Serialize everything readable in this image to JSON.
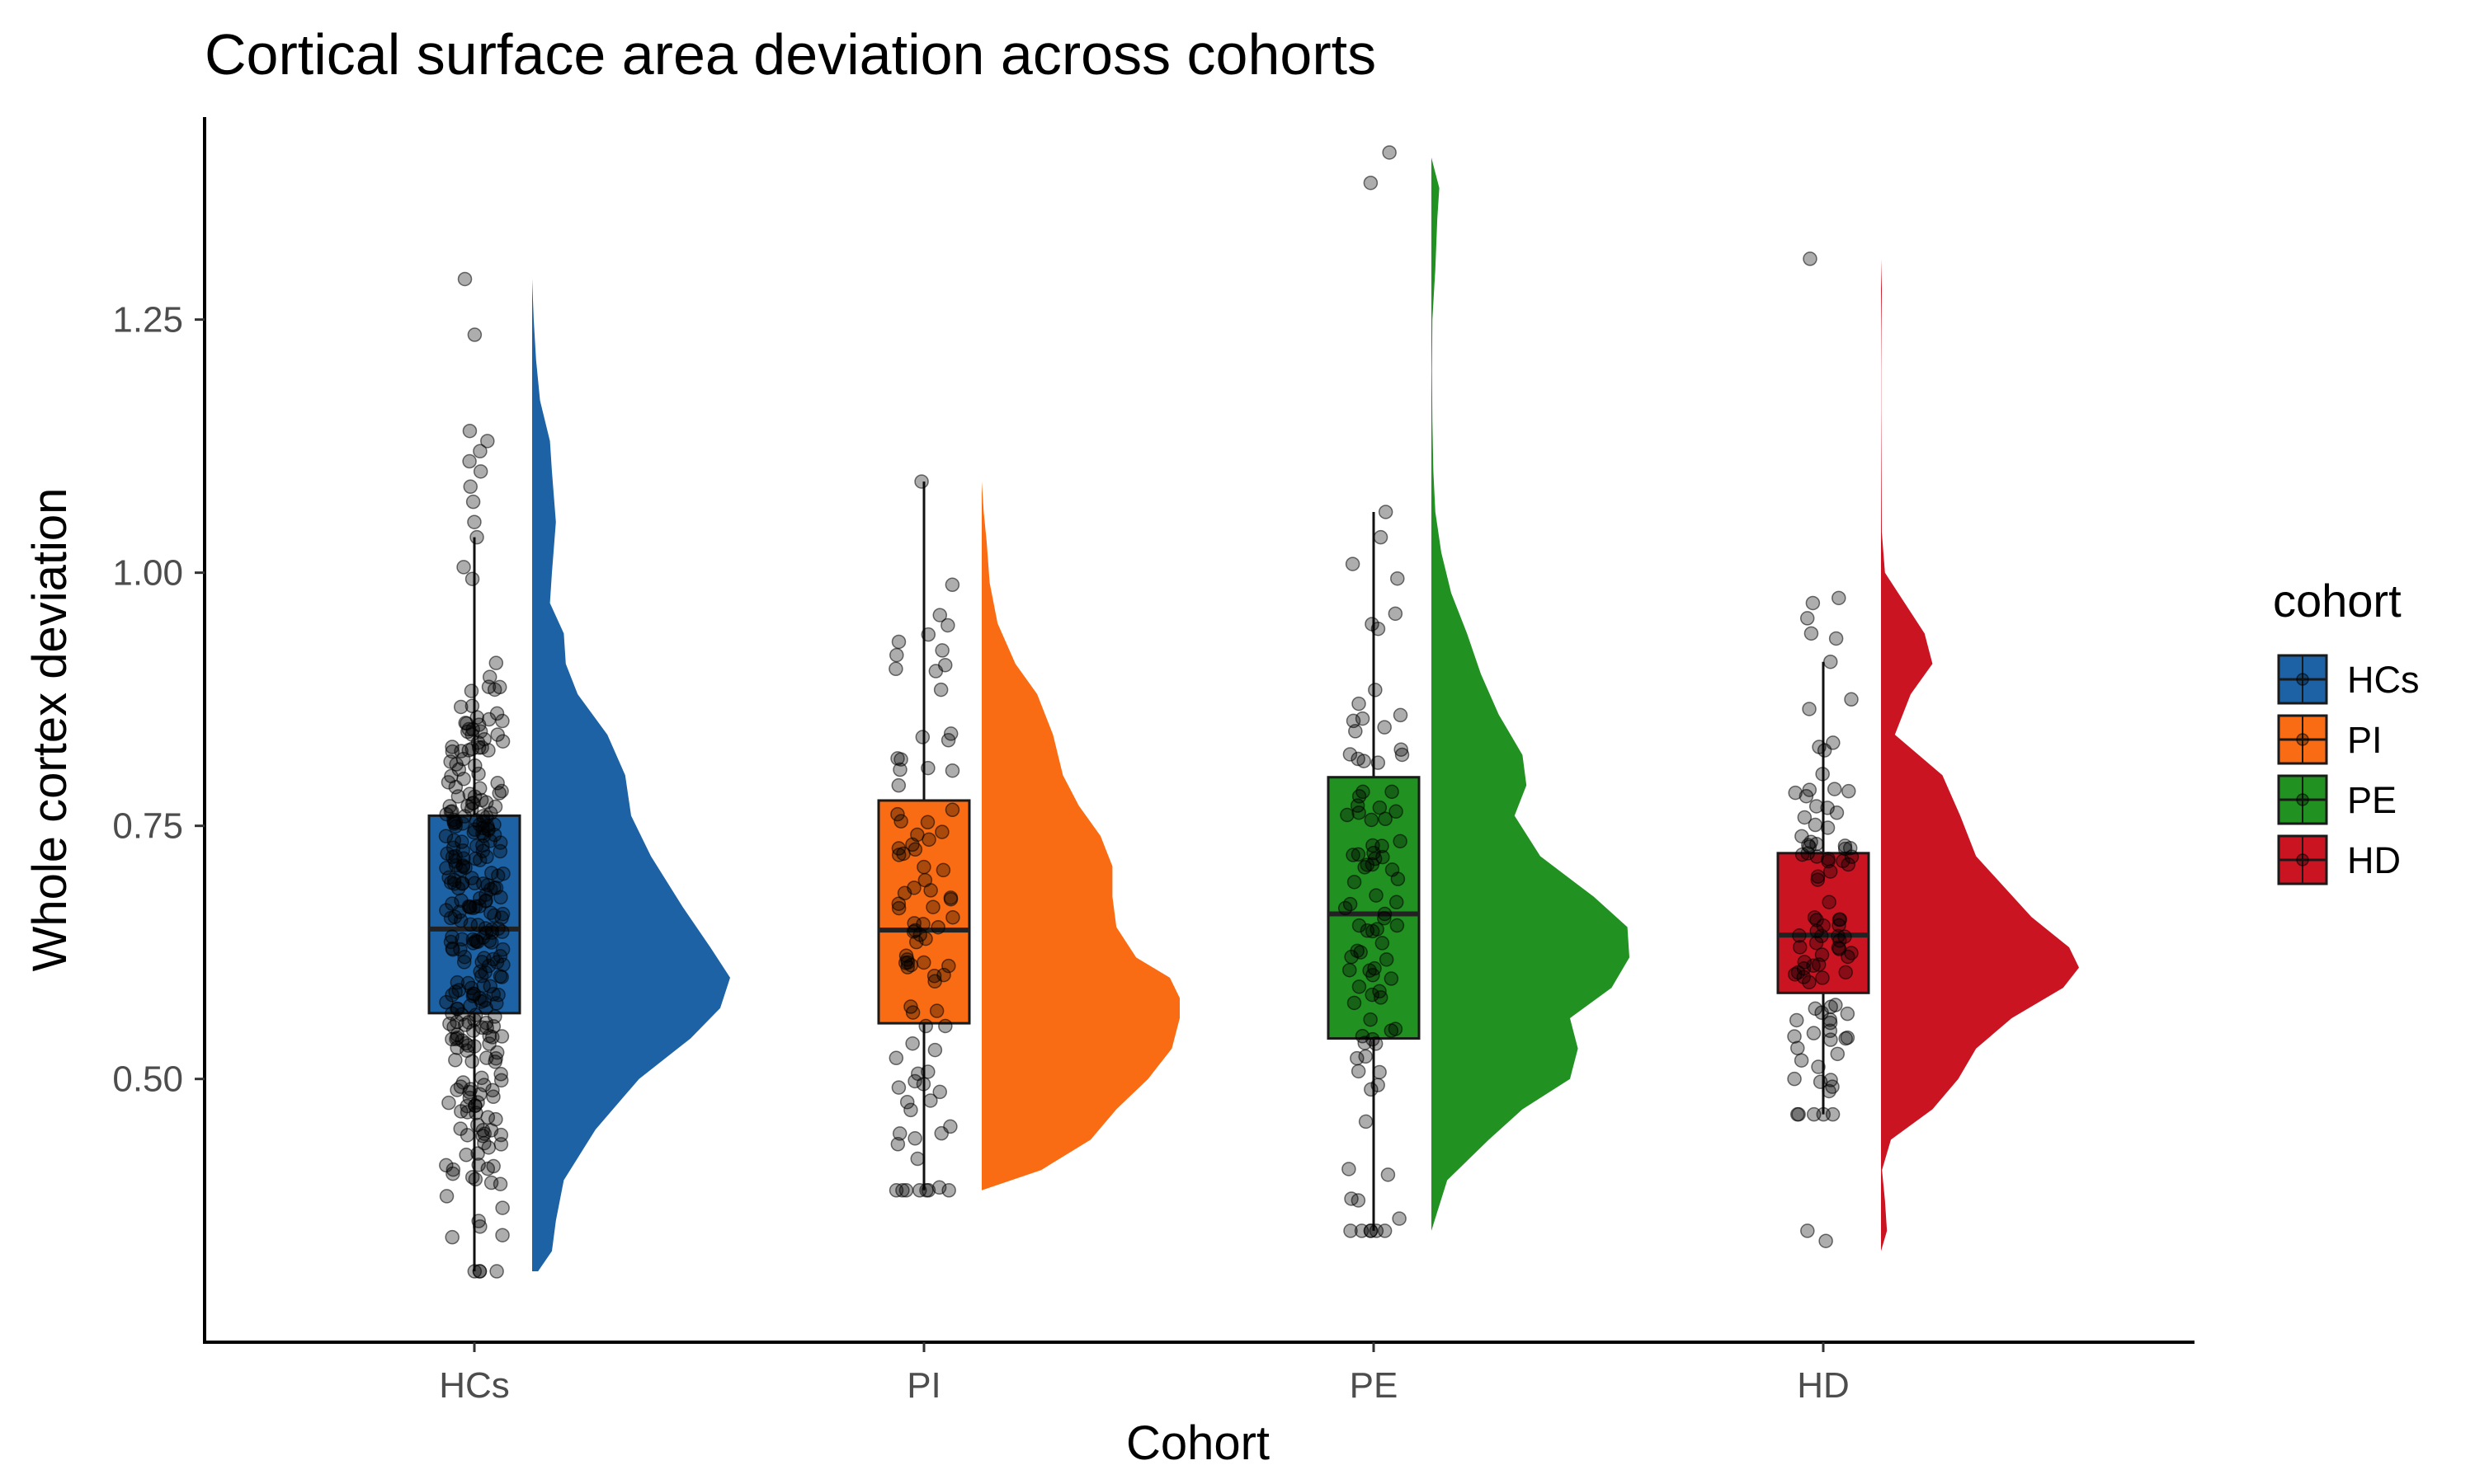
{
  "chart_data": {
    "type": "raincloud",
    "title": "Cortical surface area deviation across cohorts",
    "xlabel": "Cohort",
    "ylabel": "Whole cortex deviation",
    "ylim": [
      0.24,
      1.45
    ],
    "yticks": [
      {
        "value": 0.5,
        "label": "0.50"
      },
      {
        "value": 0.75,
        "label": "0.75"
      },
      {
        "value": 1.0,
        "label": "1.00"
      },
      {
        "value": 1.25,
        "label": "1.25"
      }
    ],
    "grid": false,
    "legend": {
      "title": "cohort",
      "position": "right"
    },
    "categories": [
      "HCs",
      "PI",
      "PE",
      "HD"
    ],
    "series": [
      {
        "name": "HCs",
        "color": "#1c62a5",
        "box": {
          "min": 0.31,
          "q1": 0.565,
          "median": 0.648,
          "q3": 0.76,
          "max": 1.035
        },
        "outliers": [
          1.05,
          1.07,
          1.085,
          1.1,
          1.11,
          1.12,
          1.13,
          1.14,
          1.235,
          1.29
        ],
        "density": {
          "y": [
            0.31,
            0.33,
            0.36,
            0.4,
            0.45,
            0.5,
            0.54,
            0.57,
            0.6,
            0.63,
            0.67,
            0.72,
            0.76,
            0.8,
            0.84,
            0.88,
            0.91,
            0.94,
            0.97,
            1.0,
            1.05,
            1.1,
            1.13,
            1.17,
            1.21,
            1.25,
            1.29
          ],
          "d": [
            0.03,
            0.1,
            0.12,
            0.16,
            0.32,
            0.54,
            0.8,
            0.95,
            1.0,
            0.9,
            0.76,
            0.6,
            0.5,
            0.47,
            0.38,
            0.23,
            0.17,
            0.16,
            0.09,
            0.1,
            0.12,
            0.1,
            0.09,
            0.04,
            0.02,
            0.008,
            0.0
          ]
        },
        "points_n": 300
      },
      {
        "name": "PI",
        "color": "#f96c13",
        "box": {
          "min": 0.39,
          "q1": 0.555,
          "median": 0.647,
          "q3": 0.775,
          "max": 1.09
        },
        "outliers": [],
        "density": {
          "y": [
            0.39,
            0.41,
            0.44,
            0.47,
            0.5,
            0.53,
            0.56,
            0.58,
            0.6,
            0.62,
            0.65,
            0.68,
            0.71,
            0.74,
            0.77,
            0.8,
            0.84,
            0.88,
            0.91,
            0.95,
            0.99,
            1.03,
            1.06,
            1.09
          ],
          "d": [
            0.0,
            0.3,
            0.55,
            0.68,
            0.84,
            0.96,
            1.0,
            1.0,
            0.95,
            0.78,
            0.68,
            0.66,
            0.66,
            0.6,
            0.49,
            0.41,
            0.36,
            0.28,
            0.17,
            0.08,
            0.04,
            0.025,
            0.01,
            0.0
          ]
        },
        "points_n": 95
      },
      {
        "name": "PE",
        "color": "#219121",
        "box": {
          "min": 0.35,
          "q1": 0.54,
          "median": 0.663,
          "q3": 0.798,
          "max": 1.06
        },
        "outliers": [
          1.385,
          1.415
        ],
        "density": {
          "y": [
            0.35,
            0.4,
            0.44,
            0.47,
            0.5,
            0.53,
            0.56,
            0.59,
            0.62,
            0.65,
            0.68,
            0.72,
            0.76,
            0.79,
            0.82,
            0.86,
            0.9,
            0.94,
            0.98,
            1.02,
            1.06,
            1.1,
            1.15,
            1.2,
            1.25,
            1.3,
            1.35,
            1.38,
            1.41
          ],
          "d": [
            0.0,
            0.08,
            0.29,
            0.46,
            0.7,
            0.74,
            0.7,
            0.91,
            1.0,
            0.99,
            0.82,
            0.55,
            0.42,
            0.48,
            0.46,
            0.34,
            0.25,
            0.18,
            0.1,
            0.05,
            0.02,
            0.01,
            0.005,
            0.003,
            0.005,
            0.02,
            0.03,
            0.04,
            0.0
          ]
        },
        "points_n": 95
      },
      {
        "name": "HD",
        "color": "#cb1422",
        "box": {
          "min": 0.465,
          "q1": 0.585,
          "median": 0.642,
          "q3": 0.723,
          "max": 0.912
        },
        "outliers": [
          0.34,
          0.35,
          0.935,
          0.94,
          0.955,
          0.97,
          0.975,
          1.31
        ],
        "density": {
          "y": [
            0.33,
            0.35,
            0.38,
            0.41,
            0.44,
            0.47,
            0.5,
            0.53,
            0.56,
            0.59,
            0.61,
            0.63,
            0.66,
            0.69,
            0.72,
            0.76,
            0.8,
            0.84,
            0.88,
            0.91,
            0.94,
            0.97,
            1.0,
            1.04,
            1.08,
            1.12,
            1.16,
            1.2,
            1.24,
            1.28,
            1.31
          ],
          "d": [
            0.0,
            0.03,
            0.02,
            0.005,
            0.05,
            0.26,
            0.39,
            0.48,
            0.66,
            0.92,
            1.0,
            0.95,
            0.76,
            0.62,
            0.48,
            0.4,
            0.31,
            0.07,
            0.15,
            0.26,
            0.22,
            0.12,
            0.02,
            0.004,
            0.003,
            0.002,
            0.001,
            0.001,
            0.002,
            0.004,
            0.0
          ]
        },
        "points_n": 95
      }
    ]
  }
}
